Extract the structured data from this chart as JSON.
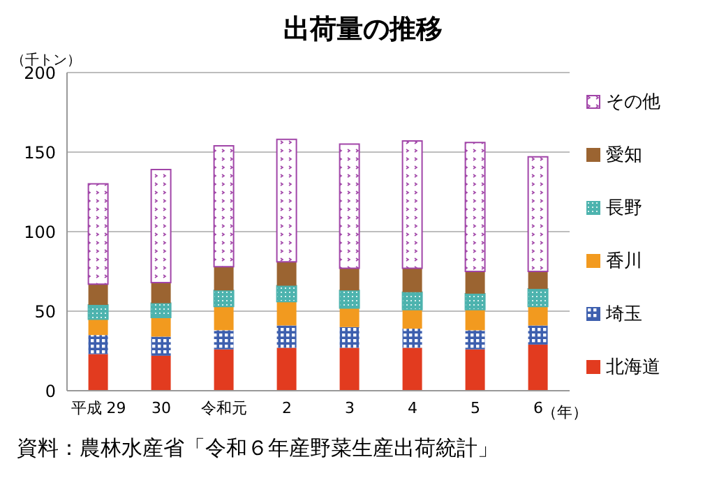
{
  "chart_data": {
    "type": "bar",
    "title": "出荷量の推移",
    "ylabel": "（千トン）",
    "xlabel": "（年）",
    "categories": [
      "平成 29",
      "30",
      "令和元",
      "2",
      "3",
      "4",
      "5",
      "6"
    ],
    "stacked": true,
    "ylim": [
      0,
      200
    ],
    "yticks": [
      0,
      50,
      100,
      150,
      200
    ],
    "grid": "y",
    "legend": "right",
    "series": [
      {
        "name": "北海道",
        "color": "#e23b1f",
        "values": [
          23,
          22,
          26,
          27,
          27,
          27,
          26,
          29
        ]
      },
      {
        "name": "埼玉",
        "color": "#3d5fae",
        "values": [
          12,
          12,
          12,
          14,
          13,
          12,
          12,
          12
        ]
      },
      {
        "name": "香川",
        "color": "#f29a1f",
        "values": [
          10,
          12,
          15,
          15,
          12,
          12,
          13,
          12
        ]
      },
      {
        "name": "長野",
        "color": "#4db3ae",
        "values": [
          9,
          9,
          10,
          10,
          11,
          11,
          10,
          11
        ]
      },
      {
        "name": "愛知",
        "color": "#9b6431",
        "values": [
          13,
          13,
          15,
          15,
          14,
          15,
          14,
          11
        ]
      },
      {
        "name": "その他",
        "color": "#a145a8",
        "values": [
          63,
          71,
          76,
          77,
          78,
          80,
          81,
          72
        ]
      }
    ],
    "annotations": [
      "資料：農林水産省「令和６年産野菜生産出荷統計」"
    ]
  }
}
